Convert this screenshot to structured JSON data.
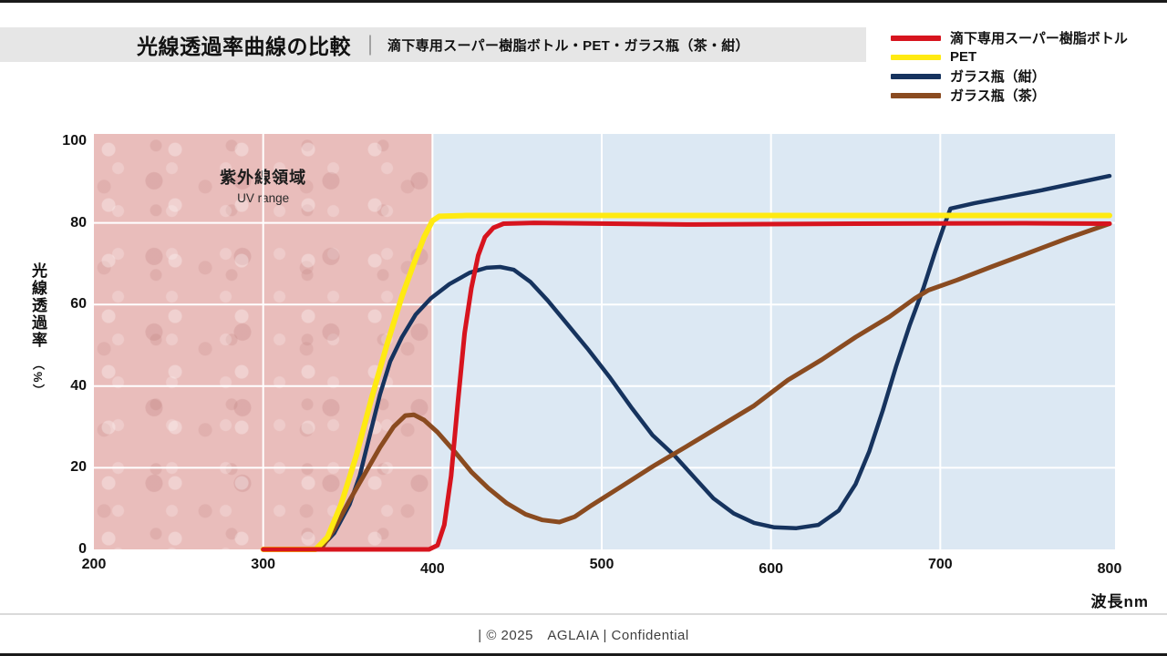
{
  "title": {
    "main": "光線透過率曲線の比較",
    "divider": "｜",
    "sub": "滴下専用スーパー樹脂ボトル・PET・ガラス瓶（茶・紺）"
  },
  "legend": {
    "position": "top-right",
    "items": [
      {
        "label": "滴下専用スーパー樹脂ボトル",
        "color": "#d7141e"
      },
      {
        "label": "PET",
        "color": "#ffea12"
      },
      {
        "label": "ガラス瓶（紺）",
        "color": "#16335e"
      },
      {
        "label": "ガラス瓶（茶）",
        "color": "#8a4b20"
      }
    ]
  },
  "uv_region": {
    "label_jp": "紫外線領域",
    "label_en": "UV range",
    "x_start": 200,
    "x_end": 400,
    "fill": "#e9bdbb"
  },
  "chart_data": {
    "type": "line",
    "title": "光線透過率曲線の比較",
    "xlabel": "波長nm",
    "ylabel": "光線透過率（%）",
    "ylabel_main": "光線透過率",
    "ylabel_unit": "（%）",
    "xlim": [
      200,
      800
    ],
    "ylim": [
      0,
      100
    ],
    "x_ticks": [
      200,
      300,
      400,
      500,
      600,
      700,
      800
    ],
    "y_ticks": [
      0,
      20,
      40,
      60,
      80,
      100
    ],
    "grid": true,
    "grid_color": "#ffffff",
    "plot_bg": "#dce8f3",
    "legend_position": "top-right",
    "series": [
      {
        "name": "ガラス瓶（紺）",
        "color": "#16335e",
        "stroke_width": 4.5,
        "points": [
          [
            333,
            0
          ],
          [
            342,
            4
          ],
          [
            351,
            11
          ],
          [
            357,
            18
          ],
          [
            363,
            28
          ],
          [
            369,
            38
          ],
          [
            375,
            46
          ],
          [
            382,
            52
          ],
          [
            390,
            57.5
          ],
          [
            399,
            61.5
          ],
          [
            410,
            65
          ],
          [
            422,
            67.8
          ],
          [
            432,
            69
          ],
          [
            440,
            69.2
          ],
          [
            448,
            68.5
          ],
          [
            458,
            65.5
          ],
          [
            468,
            61
          ],
          [
            480,
            55
          ],
          [
            492,
            49
          ],
          [
            505,
            42
          ],
          [
            518,
            34.5
          ],
          [
            530,
            28
          ],
          [
            543,
            23
          ],
          [
            555,
            17.5
          ],
          [
            566,
            12.5
          ],
          [
            578,
            8.8
          ],
          [
            590,
            6.5
          ],
          [
            602,
            5.4
          ],
          [
            615,
            5.2
          ],
          [
            628,
            6
          ],
          [
            640,
            9.5
          ],
          [
            650,
            16
          ],
          [
            658,
            24
          ],
          [
            666,
            34
          ],
          [
            674,
            45
          ],
          [
            682,
            55
          ],
          [
            690,
            64
          ],
          [
            697,
            73
          ],
          [
            702,
            79
          ],
          [
            706,
            83.5
          ],
          [
            720,
            84.8
          ],
          [
            760,
            88
          ],
          [
            800,
            91.5
          ]
        ]
      },
      {
        "name": "ガラス瓶（茶）",
        "color": "#8a4b20",
        "stroke_width": 5,
        "points": [
          [
            334,
            0
          ],
          [
            342,
            5
          ],
          [
            351,
            12
          ],
          [
            360,
            18.5
          ],
          [
            369,
            25
          ],
          [
            377,
            30
          ],
          [
            384,
            32.8
          ],
          [
            389,
            33
          ],
          [
            395,
            31.7
          ],
          [
            403,
            28.7
          ],
          [
            413,
            24
          ],
          [
            423,
            19
          ],
          [
            433,
            15
          ],
          [
            444,
            11.3
          ],
          [
            455,
            8.6
          ],
          [
            465,
            7.2
          ],
          [
            475,
            6.7
          ],
          [
            484,
            8
          ],
          [
            494,
            10.8
          ],
          [
            510,
            15
          ],
          [
            530,
            20.3
          ],
          [
            550,
            25.2
          ],
          [
            570,
            30.2
          ],
          [
            590,
            35.2
          ],
          [
            610,
            41.5
          ],
          [
            630,
            46.5
          ],
          [
            650,
            52
          ],
          [
            670,
            57
          ],
          [
            685,
            61.5
          ],
          [
            693,
            63.5
          ],
          [
            710,
            66
          ],
          [
            730,
            69.2
          ],
          [
            750,
            72.3
          ],
          [
            775,
            76.2
          ],
          [
            800,
            79.8
          ]
        ]
      },
      {
        "name": "PET",
        "color": "#ffea12",
        "stroke_width": 6,
        "points": [
          [
            300,
            0
          ],
          [
            331,
            0
          ],
          [
            338,
            3
          ],
          [
            346,
            11
          ],
          [
            355,
            23
          ],
          [
            364,
            37
          ],
          [
            373,
            50
          ],
          [
            382,
            62
          ],
          [
            389,
            70
          ],
          [
            395,
            76.5
          ],
          [
            400,
            80.5
          ],
          [
            404,
            81.6
          ],
          [
            420,
            81.8
          ],
          [
            500,
            81.8
          ],
          [
            650,
            81.8
          ],
          [
            800,
            81.8
          ]
        ]
      },
      {
        "name": "滴下専用スーパー樹脂ボトル",
        "color": "#d7141e",
        "stroke_width": 5,
        "points": [
          [
            300,
            0
          ],
          [
            398,
            0
          ],
          [
            403,
            1
          ],
          [
            407,
            6
          ],
          [
            411,
            18
          ],
          [
            415,
            36
          ],
          [
            419,
            53
          ],
          [
            423,
            64
          ],
          [
            427,
            72
          ],
          [
            431,
            76.5
          ],
          [
            436,
            78.8
          ],
          [
            442,
            79.8
          ],
          [
            460,
            80
          ],
          [
            550,
            79.6
          ],
          [
            650,
            79.8
          ],
          [
            750,
            79.9
          ],
          [
            800,
            79.8
          ]
        ]
      }
    ]
  },
  "footer": {
    "text": "| © 2025　AGLAIA | Confidential"
  }
}
